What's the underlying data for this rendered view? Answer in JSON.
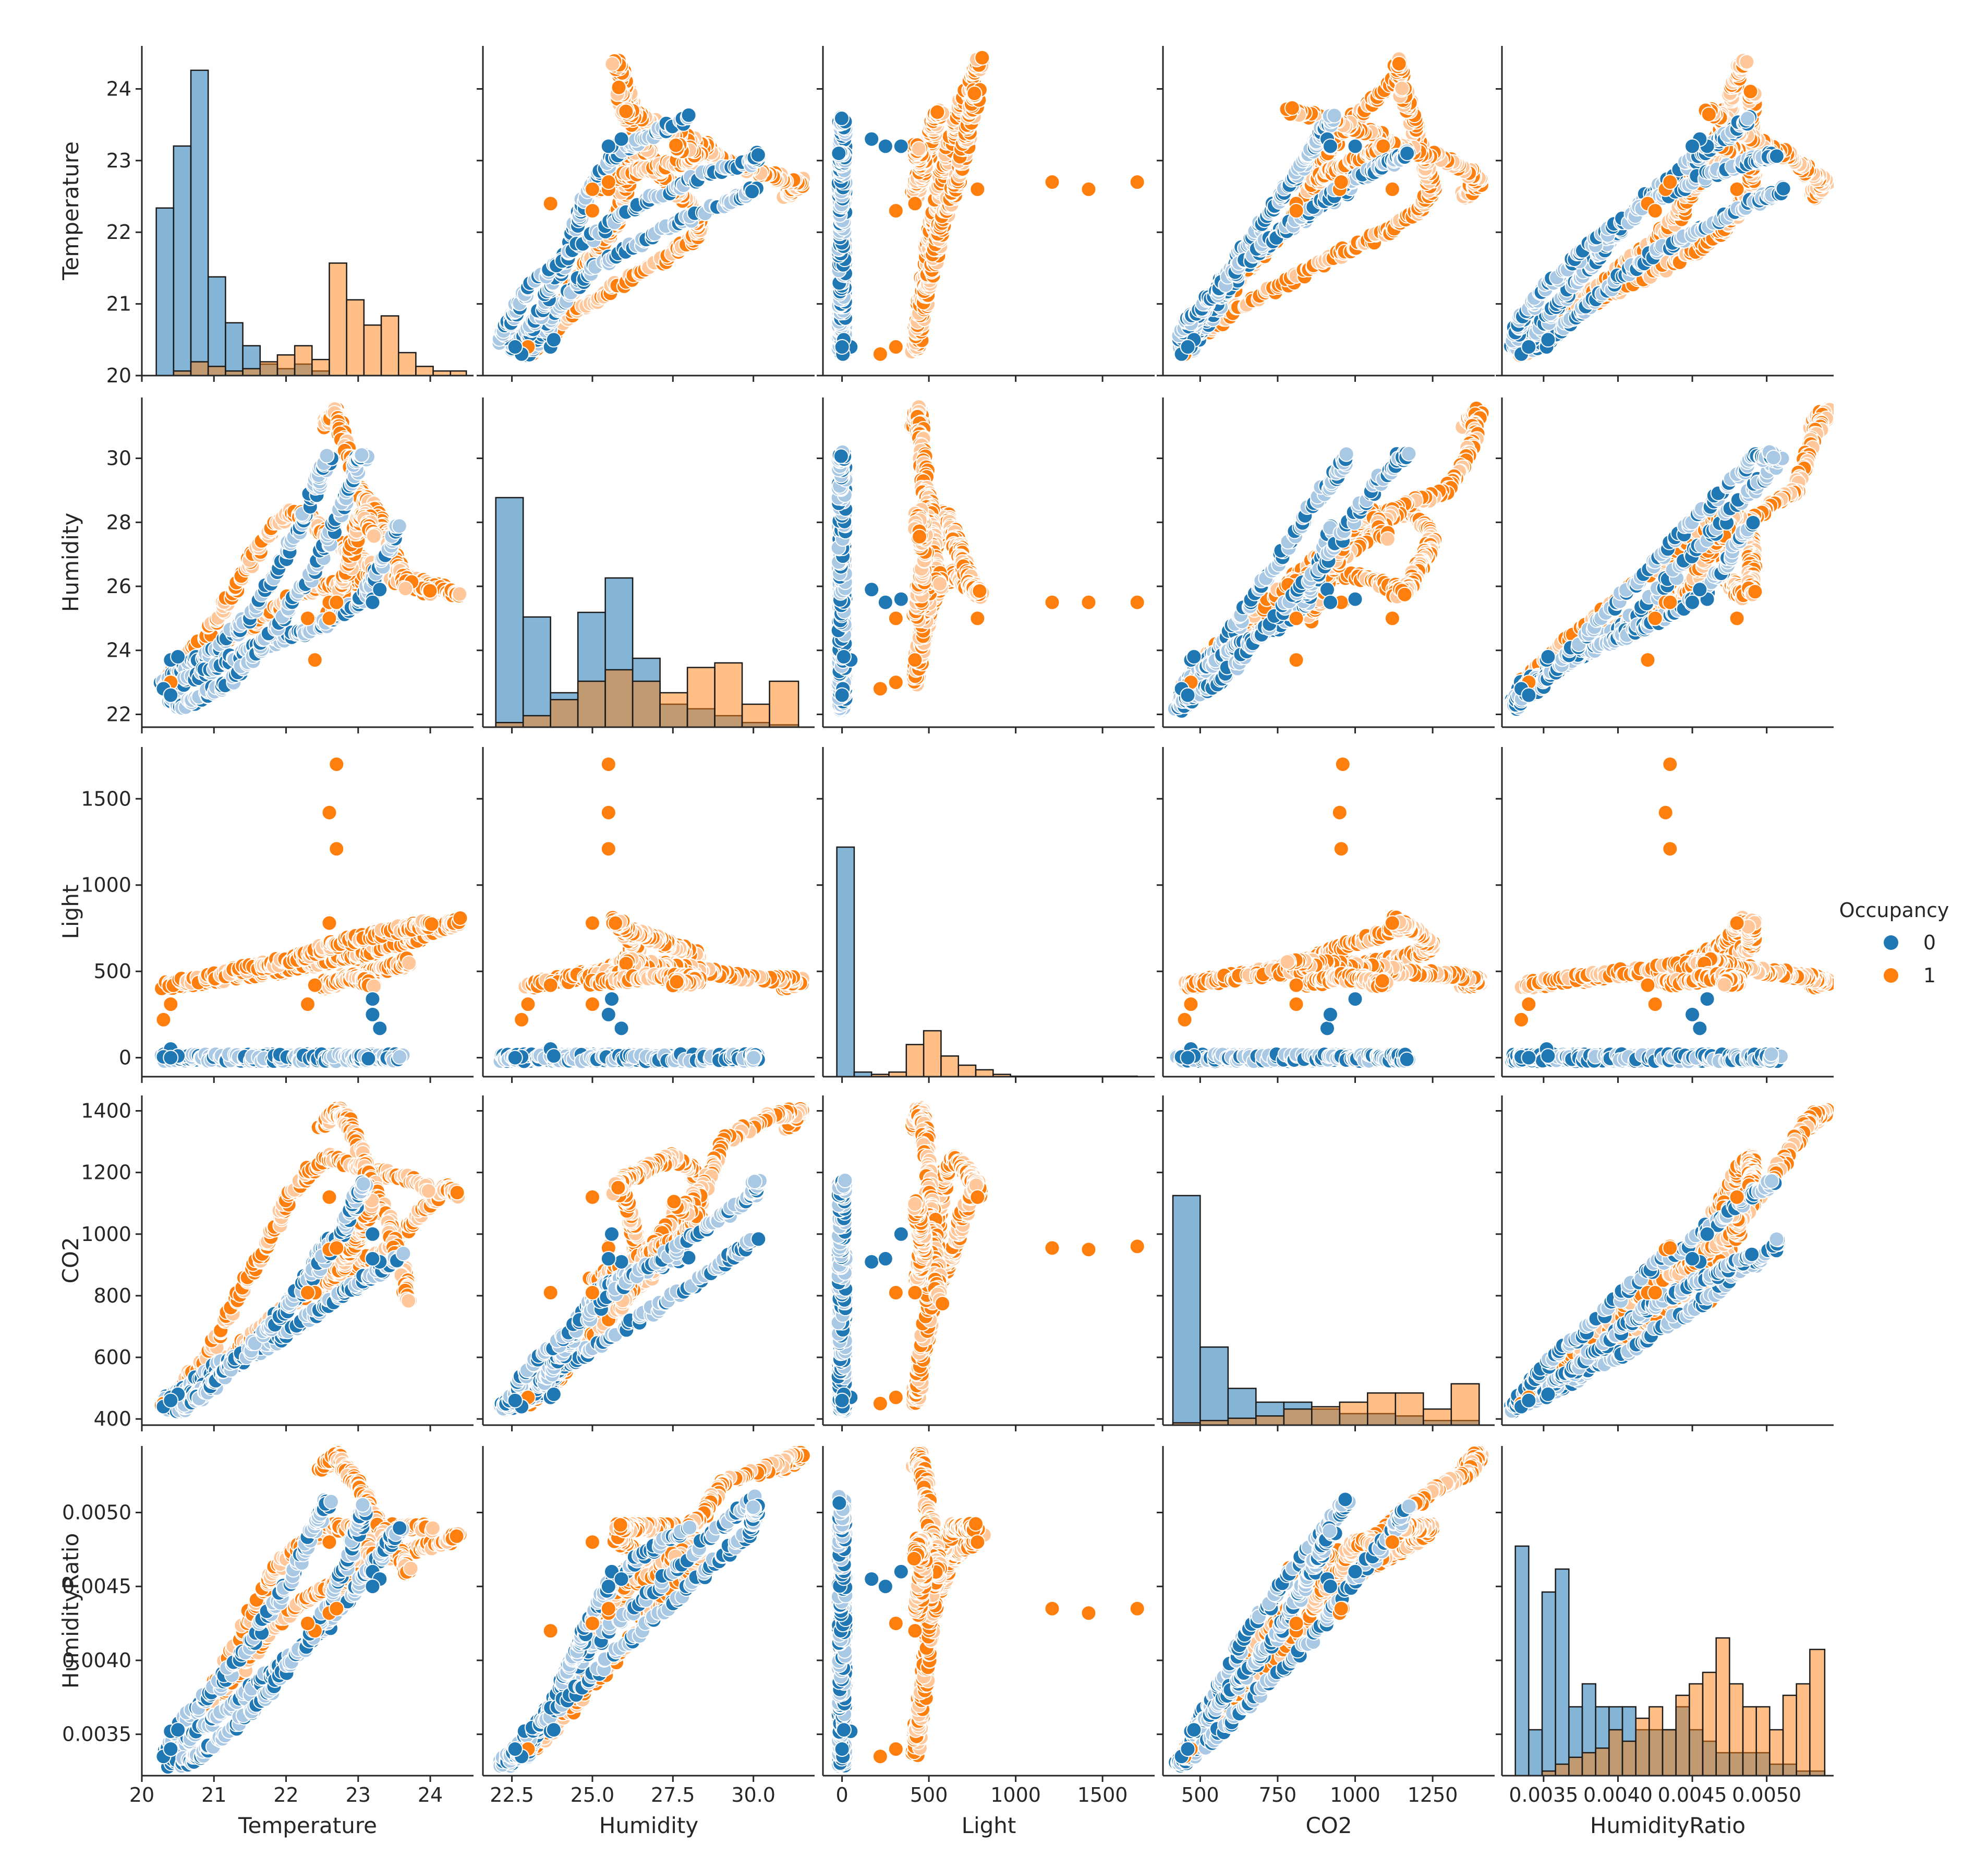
{
  "colors": {
    "occ0": "#1f77b4",
    "occ1": "#ff7f0e",
    "occ0_light": "#a9c8e4",
    "occ1_light": "#ffc79a"
  },
  "legend": {
    "title": "Occupancy",
    "items": [
      {
        "label": "0",
        "color": "#1f77b4"
      },
      {
        "label": "1",
        "color": "#ff7f0e"
      }
    ]
  },
  "chart_data": {
    "type": "scatter",
    "title": "",
    "hue": "Occupancy",
    "variables": [
      "Temperature",
      "Humidity",
      "Light",
      "CO2",
      "HumidityRatio"
    ],
    "axes": {
      "Temperature": {
        "range": [
          20.0,
          24.6
        ],
        "ticks": [
          20,
          21,
          22,
          23,
          24
        ],
        "tick_labels": [
          "20",
          "21",
          "22",
          "23",
          "24"
        ]
      },
      "Humidity": {
        "range": [
          21.6,
          31.9
        ],
        "ticks": [
          22,
          24,
          26,
          28,
          30
        ],
        "tick_labels": [
          "22",
          "24",
          "26",
          "28",
          "30"
        ],
        "xticks": [
          22.5,
          25.0,
          27.5,
          30.0
        ],
        "xtick_labels": [
          "22.5",
          "25.0",
          "27.5",
          "30.0"
        ]
      },
      "Light": {
        "range": [
          -110,
          1800
        ],
        "ticks": [
          0,
          500,
          1000,
          1500
        ],
        "tick_labels": [
          "0",
          "500",
          "1000",
          "1500"
        ],
        "xticks": [
          0,
          500,
          1000,
          1500
        ],
        "xtick_labels": [
          "0",
          "500",
          "1000",
          "1500"
        ]
      },
      "CO2": {
        "range": [
          380,
          1450
        ],
        "ticks": [
          400,
          600,
          800,
          1000,
          1200,
          1400
        ],
        "tick_labels": [
          "400",
          "600",
          "800",
          "1000",
          "1200",
          "1400"
        ],
        "xticks": [
          500,
          750,
          1000,
          1250
        ],
        "xtick_labels": [
          "500",
          "750",
          "1000",
          "1250"
        ]
      },
      "HumidityRatio": {
        "range": [
          0.00322,
          0.00545
        ],
        "ticks": [
          0.0035,
          0.004,
          0.0045,
          0.005
        ],
        "tick_labels": [
          "0.0035",
          "0.0040",
          "0.0045",
          "0.0050"
        ],
        "xticks": [
          0.0035,
          0.004,
          0.0045,
          0.005
        ],
        "xtick_labels": [
          "0.0035",
          "0.0040",
          "0.0045",
          "0.0050"
        ]
      }
    },
    "diagonal": [
      {
        "var": "Temperature",
        "edges": [
          20.2,
          20.44,
          20.68,
          20.92,
          21.16,
          21.4,
          21.64,
          21.88,
          22.12,
          22.36,
          22.6,
          22.84,
          23.08,
          23.32,
          23.56,
          23.8,
          24.04,
          24.28,
          24.5
        ],
        "occ0": [
          0.73,
          1.0,
          1.33,
          0.43,
          0.23,
          0.13,
          0.05,
          0.03,
          0.05,
          0.02,
          0,
          0,
          0,
          0,
          0,
          0,
          0,
          0
        ],
        "occ1": [
          0,
          0.02,
          0.06,
          0.04,
          0.02,
          0.03,
          0.06,
          0.09,
          0.13,
          0.07,
          0.49,
          0.33,
          0.22,
          0.26,
          0.1,
          0.04,
          0.02,
          0.02
        ]
      },
      {
        "var": "Humidity",
        "edges": [
          22.0,
          22.85,
          23.7,
          24.55,
          25.4,
          26.25,
          27.1,
          27.95,
          28.8,
          29.65,
          30.5,
          31.4
        ],
        "occ0": [
          1.0,
          0.48,
          0.15,
          0.5,
          0.65,
          0.3,
          0.1,
          0.08,
          0.05,
          0.02,
          0.01
        ],
        "occ1": [
          0.02,
          0.05,
          0.12,
          0.2,
          0.25,
          0.2,
          0.15,
          0.26,
          0.28,
          0.1,
          0.2
        ]
      },
      {
        "var": "Light",
        "edges": [
          -30,
          70,
          170,
          270,
          370,
          470,
          570,
          670,
          770,
          870,
          970,
          1700
        ],
        "occ0": [
          1.0,
          0.02,
          0,
          0,
          0,
          0,
          0,
          0,
          0,
          0,
          0
        ],
        "occ1": [
          0,
          0,
          0.01,
          0.02,
          0.14,
          0.2,
          0.09,
          0.05,
          0.03,
          0.01,
          0.002
        ]
      },
      {
        "var": "CO2",
        "edges": [
          412,
          500,
          590,
          680,
          770,
          860,
          950,
          1040,
          1130,
          1220,
          1310,
          1400
        ],
        "occ0": [
          1.0,
          0.34,
          0.16,
          0.1,
          0.1,
          0.07,
          0.05,
          0.05,
          0.04,
          0.02,
          0.02
        ],
        "occ1": [
          0.01,
          0.02,
          0.03,
          0.04,
          0.07,
          0.08,
          0.1,
          0.14,
          0.14,
          0.07,
          0.18
        ]
      },
      {
        "var": "HumidityRatio",
        "edges": [
          0.00331,
          0.0034,
          0.00349,
          0.00358,
          0.00367,
          0.00376,
          0.00385,
          0.00394,
          0.00403,
          0.00412,
          0.00421,
          0.0043,
          0.00439,
          0.00448,
          0.00457,
          0.00466,
          0.00475,
          0.00484,
          0.00493,
          0.00502,
          0.00511,
          0.0052,
          0.00529,
          0.00539
        ],
        "occ0": [
          1.0,
          0.2,
          0.8,
          0.9,
          0.3,
          0.4,
          0.3,
          0.3,
          0.3,
          0.2,
          0.2,
          0.2,
          0.3,
          0.2,
          0.15,
          0.1,
          0.1,
          0.1,
          0.1,
          0.05,
          0.05,
          0.02,
          0.02
        ],
        "occ1": [
          0.0,
          0.0,
          0.02,
          0.05,
          0.08,
          0.1,
          0.12,
          0.2,
          0.15,
          0.25,
          0.3,
          0.2,
          0.35,
          0.4,
          0.45,
          0.6,
          0.4,
          0.3,
          0.3,
          0.2,
          0.35,
          0.4,
          0.55
        ]
      }
    ],
    "trajectories": [
      {
        "occ": 0,
        "path": [
          [
            20.3,
            22.9,
            0,
            460,
            0.00335
          ],
          [
            20.6,
            23.5,
            0,
            500,
            0.0036
          ],
          [
            21.0,
            24.0,
            0,
            560,
            0.0038
          ],
          [
            21.5,
            25.0,
            0,
            630,
            0.0041
          ],
          [
            22.0,
            27.0,
            0,
            760,
            0.0045
          ],
          [
            22.4,
            29.0,
            0,
            900,
            0.0049
          ],
          [
            22.6,
            30.1,
            0,
            980,
            0.0051
          ]
        ]
      },
      {
        "occ": 0,
        "path": [
          [
            20.4,
            22.4,
            0,
            440,
            0.0033
          ],
          [
            20.6,
            23.0,
            0,
            470,
            0.00345
          ],
          [
            21.0,
            23.5,
            0,
            520,
            0.0036
          ],
          [
            21.5,
            24.0,
            0,
            600,
            0.0038
          ],
          [
            22.0,
            24.4,
            0,
            680,
            0.004
          ],
          [
            22.5,
            24.8,
            0,
            760,
            0.0042
          ],
          [
            23.0,
            25.5,
            0,
            840,
            0.0045
          ],
          [
            23.3,
            26.5,
            0,
            880,
            0.0047
          ],
          [
            23.6,
            28.0,
            0,
            930,
            0.0049
          ]
        ]
      },
      {
        "occ": 0,
        "path": [
          [
            20.5,
            22.2,
            0,
            430,
            0.0033
          ],
          [
            20.8,
            22.5,
            0,
            470,
            0.00335
          ],
          [
            21.2,
            23.0,
            0,
            560,
            0.0035
          ],
          [
            21.8,
            24.5,
            0,
            700,
            0.0038
          ],
          [
            22.4,
            26.5,
            0,
            880,
            0.0042
          ],
          [
            22.8,
            28.5,
            0,
            1020,
            0.0046
          ],
          [
            23.0,
            30.0,
            0,
            1130,
            0.0049
          ],
          [
            23.1,
            30.1,
            0,
            1170,
            0.00505
          ]
        ]
      },
      {
        "occ": 1,
        "path": [
          [
            20.3,
            23.0,
            420,
            450,
            0.00335
          ],
          [
            20.8,
            23.8,
            440,
            520,
            0.0036
          ],
          [
            21.3,
            24.5,
            470,
            620,
            0.0039
          ],
          [
            21.8,
            25.2,
            500,
            720,
            0.0042
          ],
          [
            22.2,
            25.8,
            530,
            800,
            0.0044
          ],
          [
            22.6,
            26.0,
            560,
            850,
            0.0045
          ],
          [
            23.0,
            26.2,
            600,
            900,
            0.0046
          ],
          [
            23.4,
            26.4,
            640,
            950,
            0.0047
          ],
          [
            23.8,
            26.2,
            690,
            1050,
            0.00475
          ],
          [
            24.2,
            25.9,
            760,
            1150,
            0.0048
          ],
          [
            24.4,
            25.7,
            800,
            1130,
            0.00485
          ]
        ]
      },
      {
        "occ": 1,
        "path": [
          [
            20.4,
            23.2,
            430,
            470,
            0.0034
          ],
          [
            20.9,
            24.5,
            460,
            600,
            0.0037
          ],
          [
            21.3,
            26.0,
            500,
            780,
            0.0041
          ],
          [
            21.7,
            27.5,
            540,
            950,
            0.0045
          ],
          [
            22.0,
            28.3,
            560,
            1100,
            0.0047
          ],
          [
            22.3,
            28.2,
            600,
            1200,
            0.0048
          ],
          [
            22.6,
            27.5,
            650,
            1250,
            0.0049
          ],
          [
            22.9,
            27.0,
            680,
            1230,
            0.0049
          ],
          [
            23.3,
            26.5,
            720,
            1200,
            0.0049
          ],
          [
            23.7,
            26.0,
            750,
            1180,
            0.0049
          ],
          [
            24.0,
            25.8,
            780,
            1150,
            0.0049
          ]
        ]
      },
      {
        "occ": 1,
        "path": [
          [
            22.5,
            31.0,
            420,
            1350,
            0.0053
          ],
          [
            22.7,
            31.5,
            440,
            1400,
            0.0054
          ],
          [
            22.8,
            30.5,
            460,
            1380,
            0.0053
          ],
          [
            23.0,
            29.0,
            480,
            1300,
            0.0052
          ],
          [
            23.2,
            28.5,
            500,
            1150,
            0.005
          ],
          [
            23.4,
            27.5,
            520,
            1050,
            0.0048
          ],
          [
            23.6,
            26.5,
            540,
            900,
            0.0047
          ],
          [
            23.7,
            26.0,
            560,
            780,
            0.0046
          ]
        ]
      },
      {
        "occ": 1,
        "path": [
          [
            22.6,
            25.0,
            430,
            850,
            0.0043
          ],
          [
            22.8,
            26.0,
            450,
            900,
            0.0045
          ],
          [
            22.9,
            27.0,
            470,
            950,
            0.0046
          ],
          [
            23.0,
            28.0,
            460,
            1000,
            0.0048
          ],
          [
            23.1,
            28.3,
            440,
            1050,
            0.0048
          ],
          [
            23.2,
            27.5,
            430,
            1100,
            0.0047
          ]
        ]
      }
    ],
    "outliers": [
      {
        "occ": 1,
        "point": [
          22.7,
          25.5,
          1700,
          960,
          0.00435
        ]
      },
      {
        "occ": 1,
        "point": [
          22.6,
          25.5,
          1420,
          950,
          0.00432
        ]
      },
      {
        "occ": 1,
        "point": [
          22.7,
          25.5,
          1210,
          955,
          0.00435
        ]
      },
      {
        "occ": 1,
        "point": [
          22.6,
          25.0,
          780,
          1120,
          0.0048
        ]
      },
      {
        "occ": 1,
        "point": [
          22.4,
          23.7,
          420,
          810,
          0.0042
        ]
      },
      {
        "occ": 1,
        "point": [
          22.3,
          25.0,
          310,
          810,
          0.00425
        ]
      },
      {
        "occ": 1,
        "point": [
          20.3,
          22.8,
          220,
          450,
          0.00335
        ]
      },
      {
        "occ": 1,
        "point": [
          20.4,
          23.0,
          310,
          470,
          0.0034
        ]
      },
      {
        "occ": 0,
        "point": [
          23.2,
          25.6,
          340,
          1000,
          0.0046
        ]
      },
      {
        "occ": 0,
        "point": [
          23.3,
          25.9,
          170,
          910,
          0.00455
        ]
      },
      {
        "occ": 0,
        "point": [
          23.2,
          25.5,
          250,
          920,
          0.0045
        ]
      },
      {
        "occ": 0,
        "point": [
          20.4,
          23.7,
          50,
          470,
          0.00352
        ]
      },
      {
        "occ": 0,
        "point": [
          20.5,
          23.8,
          10,
          480,
          0.00353
        ]
      },
      {
        "occ": 0,
        "point": [
          20.3,
          22.8,
          5,
          440,
          0.00335
        ]
      },
      {
        "occ": 0,
        "point": [
          20.4,
          22.6,
          0,
          460,
          0.0034
        ]
      }
    ]
  }
}
